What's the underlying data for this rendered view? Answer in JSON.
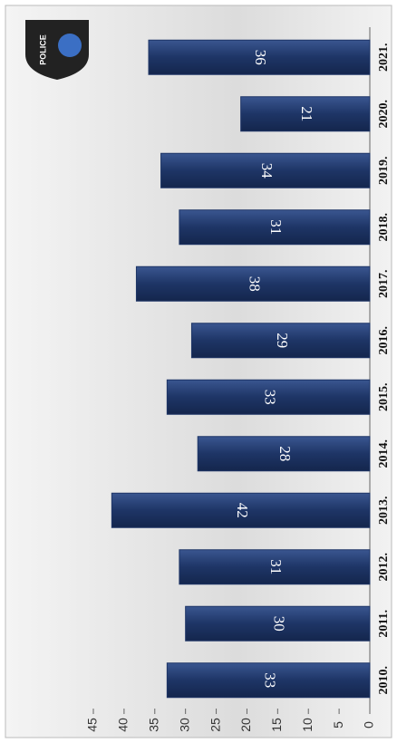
{
  "chart_data": {
    "type": "bar",
    "orientation": "horizontal",
    "categories": [
      "2010.",
      "2011.",
      "2012.",
      "2013.",
      "2014.",
      "2015.",
      "2016.",
      "2017.",
      "2018.",
      "2019.",
      "2020.",
      "2021."
    ],
    "values": [
      33,
      30,
      31,
      42,
      28,
      33,
      29,
      38,
      31,
      34,
      21,
      36
    ],
    "color": "#1e3566",
    "xlim": [
      0,
      45
    ],
    "xticks": [
      0,
      5,
      10,
      15,
      20,
      25,
      30,
      35,
      40,
      45
    ]
  }
}
